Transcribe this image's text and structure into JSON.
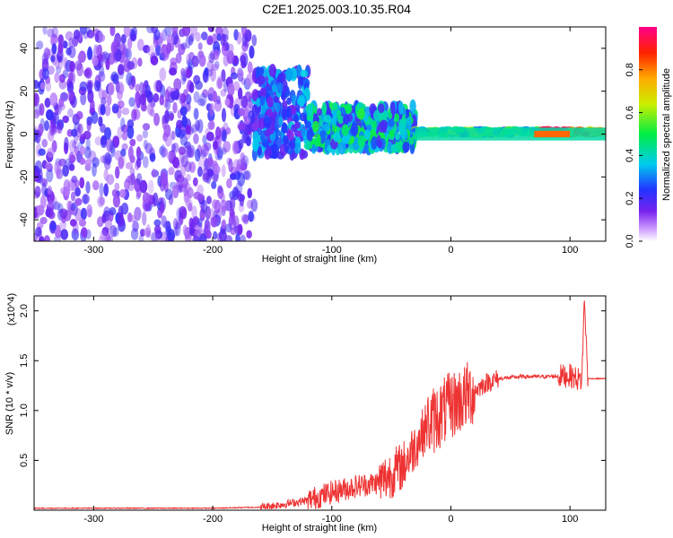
{
  "title": "C2E1.2025.003.10.35.R04",
  "chart_data": [
    {
      "type": "heatmap",
      "xlabel": "Height of straight line (km)",
      "ylabel": "Frequency (Hz)",
      "xlim": [
        -350,
        130
      ],
      "ylim": [
        -50,
        50
      ],
      "x_ticks": [
        -300,
        -200,
        -100,
        0,
        100
      ],
      "y_ticks": [
        -40,
        -20,
        0,
        20,
        40
      ],
      "colorbar": {
        "label": "Normalized spectral amplitude",
        "range": [
          0,
          1
        ],
        "ticks": [
          "0.0",
          "0.2",
          "0.4",
          "0.6",
          "0.8"
        ]
      },
      "regions": [
        {
          "x": [
            -350,
            -165
          ],
          "freq_spread": 50,
          "level": 0.15,
          "description_level": "sparse"
        },
        {
          "x": [
            -165,
            -120
          ],
          "freq_spread": 20,
          "level": 0.25
        },
        {
          "x": [
            -120,
            -30
          ],
          "freq_spread": 10,
          "level": 0.35
        },
        {
          "x": [
            -30,
            130
          ],
          "freq_spread": 3,
          "level": 0.45
        }
      ]
    },
    {
      "type": "line",
      "xlabel": "Height of straight line (km)",
      "ylabel": "SNR (10 * v/v)",
      "scale_label": "(x10^4)",
      "xlim": [
        -350,
        130
      ],
      "ylim": [
        0,
        2.15
      ],
      "x_ticks": [
        -300,
        -200,
        -100,
        0,
        100
      ],
      "y_ticks": [
        0.5,
        1.0,
        1.5,
        2.0
      ],
      "series": [
        {
          "color": "#ee3333",
          "x": [
            -350,
            -300,
            -250,
            -200,
            -160,
            -140,
            -120,
            -100,
            -80,
            -60,
            -40,
            -30,
            -20,
            -10,
            0,
            10,
            20,
            30,
            40,
            60,
            80,
            100,
            110,
            112,
            115,
            130
          ],
          "y": [
            0.02,
            0.02,
            0.02,
            0.02,
            0.03,
            0.06,
            0.1,
            0.18,
            0.24,
            0.28,
            0.45,
            0.65,
            0.85,
            0.95,
            1.05,
            1.12,
            1.2,
            1.28,
            1.32,
            1.34,
            1.34,
            1.35,
            1.3,
            2.15,
            1.32,
            1.32
          ]
        }
      ]
    }
  ]
}
